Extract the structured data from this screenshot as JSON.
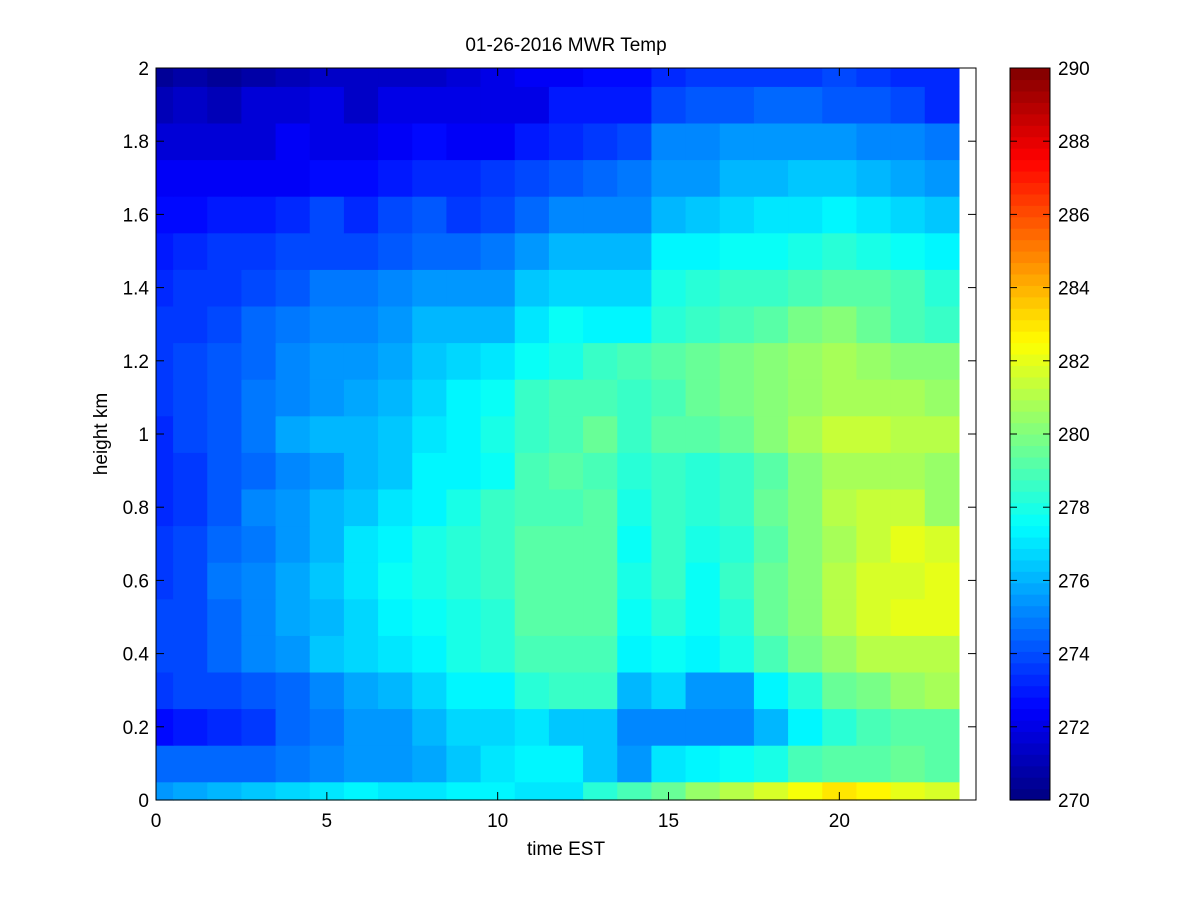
{
  "chart_data": {
    "type": "heatmap",
    "title": "01-26-2016 MWR Temp",
    "xlabel": "time EST",
    "ylabel": "height km",
    "xlim": [
      0,
      24
    ],
    "ylim": [
      0,
      2
    ],
    "x_ticks": [
      0,
      5,
      10,
      15,
      20
    ],
    "x_tick_labels": [
      "0",
      "5",
      "10",
      "15",
      "20"
    ],
    "y_ticks": [
      0,
      0.2,
      0.4,
      0.6,
      0.8,
      1,
      1.2,
      1.4,
      1.6,
      1.8,
      2
    ],
    "y_tick_labels": [
      "0",
      "0.2",
      "0.4",
      "0.6",
      "0.8",
      "1",
      "1.2",
      "1.4",
      "1.6",
      "1.8",
      "2"
    ],
    "colorbar": {
      "colormap": "jet",
      "clim": [
        270,
        290
      ],
      "ticks": [
        270,
        272,
        274,
        276,
        278,
        280,
        282,
        284,
        286,
        288,
        290
      ],
      "tick_labels": [
        "270",
        "272",
        "274",
        "276",
        "278",
        "280",
        "282",
        "284",
        "286",
        "288",
        "290"
      ]
    },
    "time_hours": [
      0,
      1,
      2,
      3,
      4,
      5,
      6,
      7,
      8,
      9,
      10,
      11,
      12,
      13,
      14,
      15,
      16,
      17,
      18,
      19,
      20,
      21,
      22,
      23
    ],
    "height_km": [
      0,
      0.1,
      0.2,
      0.3,
      0.4,
      0.5,
      0.6,
      0.7,
      0.8,
      0.9,
      1.0,
      1.1,
      1.2,
      1.3,
      1.4,
      1.5,
      1.6,
      1.7,
      1.8,
      1.9,
      2.0
    ],
    "temperature_K": [
      [
        275.6,
        275.8,
        276.0,
        276.3,
        276.6,
        276.9,
        277.2,
        277.1,
        277.0,
        277.2,
        277.3,
        277.0,
        277.1,
        278.4,
        278.9,
        279.6,
        280.5,
        281.0,
        281.6,
        282.3,
        283.1,
        282.6,
        282.0,
        281.6
      ],
      [
        274.5,
        274.6,
        274.6,
        274.6,
        274.8,
        275.0,
        275.6,
        275.6,
        275.9,
        276.4,
        277.0,
        277.2,
        277.3,
        276.4,
        275.5,
        277.0,
        277.3,
        277.5,
        278.0,
        278.8,
        279.3,
        279.3,
        279.4,
        279.3
      ],
      [
        272.6,
        273.0,
        273.4,
        273.6,
        274.5,
        274.8,
        275.5,
        275.6,
        276.1,
        276.6,
        276.7,
        277.1,
        276.5,
        276.3,
        275.2,
        275.0,
        275.1,
        275.0,
        276.2,
        277.2,
        278.2,
        279.0,
        279.1,
        279.1
      ],
      [
        273.6,
        273.8,
        274.0,
        274.1,
        274.6,
        275.3,
        275.8,
        276.0,
        276.7,
        277.3,
        277.3,
        278.2,
        278.5,
        278.5,
        276.0,
        276.7,
        275.5,
        275.5,
        277.2,
        278.2,
        279.5,
        279.9,
        280.5,
        280.8
      ],
      [
        273.9,
        274.0,
        274.4,
        275.1,
        275.6,
        276.3,
        276.8,
        277.0,
        277.4,
        278.0,
        278.4,
        278.9,
        278.9,
        278.8,
        277.4,
        277.8,
        277.3,
        278.0,
        278.9,
        279.7,
        280.4,
        281.0,
        281.1,
        281.1
      ],
      [
        273.8,
        273.8,
        274.5,
        275.1,
        275.7,
        276.2,
        276.8,
        277.2,
        277.7,
        278.0,
        278.4,
        279.1,
        279.3,
        279.2,
        277.6,
        278.3,
        277.5,
        278.4,
        279.4,
        280.3,
        281.1,
        281.6,
        282.0,
        282.0
      ],
      [
        273.6,
        273.9,
        274.7,
        275.0,
        275.8,
        276.4,
        277.1,
        277.6,
        278.0,
        278.3,
        278.5,
        279.1,
        279.1,
        279.2,
        277.9,
        278.6,
        277.7,
        278.6,
        279.4,
        280.3,
        281.2,
        281.6,
        281.8,
        282.0
      ],
      [
        273.5,
        273.8,
        274.4,
        274.8,
        275.6,
        276.2,
        277.0,
        277.3,
        278.0,
        278.3,
        278.6,
        279.1,
        279.2,
        279.3,
        277.8,
        278.6,
        278.0,
        278.4,
        279.3,
        280.1,
        280.9,
        281.4,
        281.9,
        281.7
      ],
      [
        273.4,
        273.7,
        274.2,
        275.0,
        275.4,
        276.0,
        276.5,
        276.9,
        277.4,
        277.9,
        278.5,
        279.0,
        279.0,
        279.1,
        278.0,
        278.6,
        278.4,
        278.6,
        279.4,
        280.1,
        281.0,
        281.4,
        281.4,
        280.6
      ],
      [
        273.2,
        273.5,
        274.2,
        274.6,
        275.0,
        275.4,
        276.0,
        276.4,
        277.2,
        277.3,
        277.8,
        278.9,
        279.1,
        279.0,
        278.3,
        278.6,
        278.2,
        278.7,
        279.2,
        280.3,
        280.7,
        280.9,
        280.8,
        280.5
      ],
      [
        273.4,
        273.8,
        274.2,
        274.7,
        275.9,
        276.0,
        276.1,
        276.5,
        277.1,
        277.4,
        277.9,
        278.6,
        278.8,
        279.4,
        278.6,
        279.1,
        279.2,
        279.6,
        280.2,
        280.8,
        281.3,
        281.4,
        281.2,
        281.0
      ],
      [
        273.5,
        273.9,
        274.3,
        274.9,
        275.3,
        275.6,
        275.8,
        276.2,
        276.8,
        277.4,
        277.6,
        278.5,
        278.9,
        279.0,
        278.6,
        279.0,
        279.5,
        279.7,
        280.1,
        280.6,
        280.9,
        280.9,
        280.7,
        280.5
      ],
      [
        273.6,
        274.0,
        274.3,
        274.6,
        275.0,
        275.5,
        275.6,
        275.9,
        276.4,
        276.8,
        277.1,
        277.6,
        278.1,
        278.6,
        278.9,
        279.2,
        279.5,
        279.7,
        280.3,
        280.6,
        280.8,
        280.5,
        280.2,
        280.0
      ],
      [
        273.5,
        273.7,
        274.0,
        274.4,
        274.9,
        275.1,
        275.2,
        275.6,
        276.1,
        276.1,
        276.1,
        277.0,
        277.5,
        277.4,
        277.4,
        278.3,
        278.5,
        279.0,
        279.3,
        279.7,
        280.0,
        279.5,
        279.0,
        278.6
      ],
      [
        273.4,
        273.5,
        273.7,
        273.8,
        274.3,
        274.7,
        274.8,
        275.0,
        275.6,
        275.5,
        275.6,
        276.4,
        276.6,
        276.8,
        276.8,
        277.9,
        278.3,
        278.6,
        278.6,
        278.9,
        279.3,
        279.1,
        278.8,
        278.3
      ],
      [
        273.1,
        273.3,
        273.5,
        273.6,
        273.8,
        274.0,
        273.8,
        274.3,
        274.4,
        274.4,
        274.7,
        275.5,
        276.0,
        276.1,
        276.1,
        277.2,
        277.4,
        277.5,
        277.8,
        278.1,
        278.4,
        277.9,
        277.5,
        277.2
      ],
      [
        272.7,
        272.8,
        273.1,
        273.0,
        273.2,
        273.8,
        273.4,
        273.8,
        274.1,
        273.6,
        274.0,
        274.6,
        275.1,
        275.2,
        275.2,
        276.1,
        276.3,
        276.8,
        277.1,
        277.1,
        277.3,
        276.9,
        276.6,
        276.3
      ],
      [
        272.4,
        272.3,
        272.3,
        272.4,
        272.4,
        272.7,
        272.5,
        272.9,
        273.3,
        273.2,
        273.6,
        274.0,
        274.2,
        274.4,
        274.8,
        275.4,
        275.6,
        276.0,
        276.1,
        276.4,
        276.4,
        276.0,
        275.7,
        275.5
      ],
      [
        271.6,
        271.7,
        271.8,
        271.8,
        272.2,
        271.9,
        272.0,
        272.3,
        272.5,
        272.3,
        272.3,
        273.0,
        273.4,
        273.7,
        274.0,
        275.1,
        275.2,
        275.4,
        275.6,
        275.5,
        275.6,
        275.3,
        275.0,
        274.8
      ],
      [
        271.0,
        271.3,
        271.2,
        271.6,
        271.7,
        271.9,
        271.5,
        271.9,
        272.0,
        272.0,
        272.1,
        272.1,
        272.9,
        272.9,
        272.9,
        274.0,
        274.1,
        274.2,
        274.4,
        274.4,
        274.3,
        274.2,
        273.9,
        273.2
      ],
      [
        270.6,
        270.7,
        270.6,
        270.7,
        271.2,
        271.4,
        271.3,
        271.4,
        271.4,
        271.6,
        272.0,
        272.2,
        272.4,
        272.6,
        272.5,
        273.4,
        273.5,
        273.6,
        273.6,
        273.7,
        273.8,
        273.5,
        273.3,
        273.2
      ]
    ]
  }
}
